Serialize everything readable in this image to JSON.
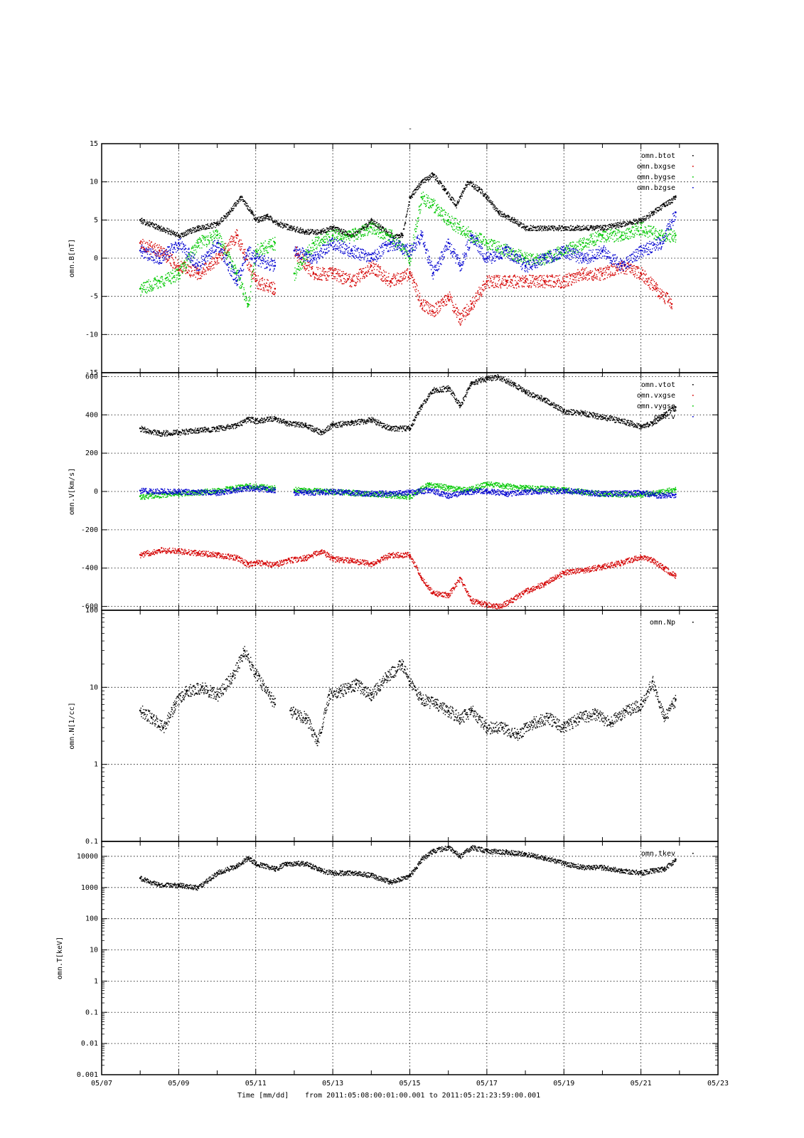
{
  "figure": {
    "title": "-",
    "footer": {
      "xlabel": "Time [mm/dd]",
      "range_text": "from 2011:05:08:00:01:00.001  to  2011:05:21:23:59:00.001"
    },
    "x_ticks": [
      "05/07",
      "05/09",
      "05/11",
      "05/13",
      "05/15",
      "05/17",
      "05/19",
      "05/21",
      "05/23"
    ]
  },
  "colors": {
    "black": "#000000",
    "red": "#d40000",
    "green": "#00c800",
    "blue": "#0000d0",
    "grid": "#000000"
  },
  "chart_data": [
    {
      "type": "scatter",
      "ylabel": "omn.B[nT]",
      "xlim": [
        7,
        23
      ],
      "ylim": [
        -15,
        15
      ],
      "y_ticks": [
        "15",
        "10",
        "5",
        "0",
        "-5",
        "-10",
        "-15"
      ],
      "y_tick_values": [
        15,
        10,
        5,
        0,
        -5,
        -10,
        -15
      ],
      "series": [
        {
          "name": "omn.btot",
          "color": "black",
          "x": [
            8.0,
            8.5,
            9.0,
            9.5,
            10.0,
            10.3,
            10.6,
            10.9,
            11.0,
            11.3,
            11.6,
            11.9,
            12.3,
            12.7,
            13.0,
            13.5,
            13.8,
            14.0,
            14.5,
            14.8,
            15.0,
            15.3,
            15.6,
            15.9,
            16.2,
            16.5,
            16.8,
            17.0,
            17.3,
            17.7,
            18.0,
            18.5,
            19.0,
            19.3,
            19.7,
            20.0,
            20.5,
            21.0,
            21.3,
            21.6,
            21.9
          ],
          "y": [
            5,
            4,
            3,
            4,
            4.5,
            6,
            8,
            6,
            5,
            5.5,
            4.5,
            4,
            3.5,
            3.5,
            4,
            3,
            4,
            5,
            3,
            3,
            8,
            10,
            11,
            9,
            7,
            10,
            9,
            8,
            6,
            5,
            4,
            4,
            4,
            4,
            4,
            4,
            4.5,
            5,
            6,
            7,
            8
          ]
        },
        {
          "name": "omn.bxgse",
          "color": "red",
          "x": [
            8.0,
            8.5,
            9.0,
            9.5,
            10.0,
            10.5,
            11.0,
            11.5,
            12.0,
            12.5,
            13.0,
            13.5,
            14.0,
            14.5,
            15.0,
            15.3,
            15.6,
            16.0,
            16.3,
            16.6,
            17.0,
            17.5,
            18.0,
            18.5,
            19.0,
            19.5,
            20.0,
            20.5,
            21.0,
            21.4,
            21.8
          ],
          "y": [
            2,
            1,
            -1,
            -2,
            0,
            3,
            -3,
            -4,
            1,
            -2,
            -2,
            -3,
            -1,
            -3,
            -2,
            -6,
            -7,
            -5,
            -8,
            -6,
            -3,
            -3,
            -3,
            -3,
            -3,
            -2,
            -2,
            -1,
            -2,
            -4,
            -6
          ]
        },
        {
          "name": "omn.bygse",
          "color": "green",
          "x": [
            8.0,
            8.5,
            9.0,
            9.5,
            10.0,
            10.5,
            10.8,
            11.0,
            11.5,
            12.0,
            12.5,
            13.0,
            13.5,
            14.0,
            14.5,
            15.0,
            15.3,
            15.6,
            16.0,
            16.3,
            16.6,
            17.0,
            17.5,
            18.0,
            18.5,
            19.0,
            19.5,
            20.0,
            20.5,
            21.0,
            21.5,
            21.9
          ],
          "y": [
            -4,
            -3,
            -2,
            2,
            3,
            -2,
            -6,
            1,
            2,
            -2,
            2,
            3,
            3,
            4,
            3,
            0,
            8,
            7,
            5,
            4,
            3,
            2,
            1,
            0,
            0,
            1,
            2,
            3,
            3,
            4,
            3,
            3
          ]
        },
        {
          "name": "omn.bzgse",
          "color": "blue",
          "x": [
            8.0,
            8.5,
            9.0,
            9.5,
            10.0,
            10.5,
            10.8,
            11.0,
            11.5,
            12.0,
            12.5,
            13.0,
            13.5,
            14.0,
            14.5,
            15.0,
            15.3,
            15.6,
            16.0,
            16.3,
            16.6,
            17.0,
            17.5,
            18.0,
            18.5,
            19.0,
            19.5,
            20.0,
            20.5,
            21.0,
            21.5,
            21.9
          ],
          "y": [
            1,
            0,
            2,
            -1,
            2,
            -3,
            1,
            0,
            -1,
            1,
            0,
            2,
            1,
            0,
            2,
            1,
            3,
            -2,
            2,
            -1,
            3,
            0,
            1,
            -1,
            0,
            1,
            0,
            1,
            -1,
            1,
            2,
            6
          ]
        }
      ]
    },
    {
      "type": "scatter",
      "ylabel": "omn.V[km/s]",
      "xlim": [
        7,
        23
      ],
      "ylim": [
        -620,
        620
      ],
      "y_ticks": [
        "600",
        "400",
        "200",
        "0",
        "-200",
        "-400",
        "-600"
      ],
      "y_tick_values": [
        600,
        400,
        200,
        0,
        -200,
        -400,
        -600
      ],
      "series": [
        {
          "name": "omn.vtot",
          "color": "black",
          "x": [
            8.0,
            8.5,
            9.0,
            9.5,
            10.0,
            10.5,
            10.8,
            11.0,
            11.5,
            11.8,
            12.3,
            12.7,
            13.0,
            13.5,
            14.0,
            14.5,
            15.0,
            15.3,
            15.6,
            16.0,
            16.3,
            16.6,
            17.0,
            17.3,
            17.7,
            18.0,
            18.5,
            19.0,
            19.5,
            20.0,
            20.5,
            21.0,
            21.3,
            21.6,
            21.9
          ],
          "y": [
            330,
            305,
            310,
            320,
            330,
            345,
            380,
            370,
            380,
            360,
            345,
            310,
            350,
            360,
            375,
            330,
            330,
            450,
            530,
            540,
            450,
            570,
            590,
            600,
            560,
            520,
            480,
            420,
            410,
            390,
            370,
            340,
            360,
            400,
            440
          ]
        },
        {
          "name": "omn.vxgse",
          "color": "red",
          "x": [
            8.0,
            8.5,
            9.0,
            9.5,
            10.0,
            10.5,
            10.8,
            11.0,
            11.5,
            11.8,
            12.3,
            12.7,
            13.0,
            13.5,
            14.0,
            14.5,
            15.0,
            15.3,
            15.6,
            16.0,
            16.3,
            16.6,
            17.0,
            17.3,
            17.7,
            18.0,
            18.5,
            19.0,
            19.5,
            20.0,
            20.5,
            21.0,
            21.3,
            21.6,
            21.9
          ],
          "y": [
            -330,
            -305,
            -310,
            -320,
            -330,
            -345,
            -380,
            -370,
            -380,
            -360,
            -345,
            -310,
            -350,
            -360,
            -375,
            -330,
            -330,
            -450,
            -530,
            -540,
            -450,
            -570,
            -590,
            -600,
            -560,
            -520,
            -480,
            -420,
            -410,
            -390,
            -370,
            -340,
            -360,
            -400,
            -440
          ]
        },
        {
          "name": "omn.vygse",
          "color": "green",
          "x": [
            8.0,
            9.0,
            10.0,
            10.8,
            11.5,
            12.0,
            13.0,
            14.0,
            15.0,
            15.5,
            16.0,
            16.5,
            17.0,
            17.5,
            18.0,
            19.0,
            20.0,
            21.0,
            21.5,
            21.9
          ],
          "y": [
            -25,
            -10,
            5,
            30,
            20,
            10,
            0,
            -10,
            -25,
            40,
            20,
            10,
            40,
            30,
            20,
            10,
            -10,
            -15,
            0,
            10
          ]
        },
        {
          "name": "omn.v",
          "color": "blue",
          "x": [
            8.0,
            9.0,
            10.0,
            10.8,
            11.5,
            12.0,
            13.0,
            14.0,
            15.0,
            15.5,
            16.0,
            16.5,
            17.0,
            17.5,
            18.0,
            19.0,
            20.0,
            21.0,
            21.5,
            21.9
          ],
          "y": [
            5,
            0,
            -5,
            20,
            10,
            -5,
            0,
            -10,
            -5,
            10,
            -20,
            0,
            5,
            -10,
            0,
            5,
            -10,
            -5,
            -20,
            -15
          ]
        }
      ]
    },
    {
      "type": "scatter",
      "ylabel": "omn.N[1/cc]",
      "xlim": [
        7,
        23
      ],
      "ylim": [
        0.1,
        100
      ],
      "yscale": "log",
      "y_ticks": [
        "100",
        "10",
        "1",
        "0.1"
      ],
      "y_tick_values": [
        100,
        10,
        1,
        0.1
      ],
      "series": [
        {
          "name": "omn.Np",
          "color": "black",
          "x": [
            8.0,
            8.3,
            8.6,
            8.9,
            9.2,
            9.6,
            10.0,
            10.4,
            10.7,
            11.0,
            11.5,
            11.9,
            12.3,
            12.6,
            12.9,
            13.2,
            13.6,
            14.0,
            14.4,
            14.8,
            15.0,
            15.3,
            15.7,
            16.0,
            16.3,
            16.6,
            17.0,
            17.4,
            17.8,
            18.2,
            18.6,
            19.0,
            19.4,
            19.8,
            20.2,
            20.6,
            21.0,
            21.3,
            21.6,
            21.9
          ],
          "y": [
            5,
            4,
            3,
            6,
            9,
            10,
            8,
            14,
            30,
            15,
            6,
            5,
            4,
            2,
            8,
            9,
            11,
            8,
            14,
            20,
            12,
            7,
            6,
            5,
            4,
            5,
            3,
            3,
            2.5,
            3.5,
            4,
            3,
            4,
            4.5,
            3.5,
            5,
            6,
            12,
            4,
            7
          ]
        }
      ]
    },
    {
      "type": "scatter",
      "ylabel": "omn.T[keV]",
      "xlim": [
        7,
        23
      ],
      "ylim": [
        0.001,
        30000
      ],
      "yscale": "log",
      "y_ticks": [
        "10000",
        "1000",
        "100",
        "10",
        "1",
        "0.1",
        "0.01",
        "0.001"
      ],
      "y_tick_values": [
        10000,
        1000,
        100,
        10,
        1,
        0.1,
        0.01,
        0.001
      ],
      "series": [
        {
          "name": "omn.tkev",
          "color": "black",
          "x": [
            8.0,
            8.5,
            9.0,
            9.5,
            10.0,
            10.5,
            10.8,
            11.0,
            11.5,
            11.8,
            12.3,
            12.7,
            13.0,
            13.5,
            14.0,
            14.5,
            15.0,
            15.3,
            15.6,
            16.0,
            16.3,
            16.6,
            17.0,
            17.5,
            18.0,
            18.5,
            19.0,
            19.5,
            20.0,
            20.5,
            21.0,
            21.3,
            21.6,
            21.9
          ],
          "y": [
            2000,
            1200,
            1200,
            1000,
            3000,
            5000,
            9000,
            6000,
            4000,
            6000,
            6000,
            3500,
            3000,
            3000,
            2500,
            1500,
            2500,
            8000,
            15000,
            20000,
            10000,
            20000,
            15000,
            14000,
            12000,
            9000,
            6000,
            4500,
            4500,
            3500,
            3000,
            3500,
            4000,
            8000
          ]
        }
      ]
    }
  ]
}
